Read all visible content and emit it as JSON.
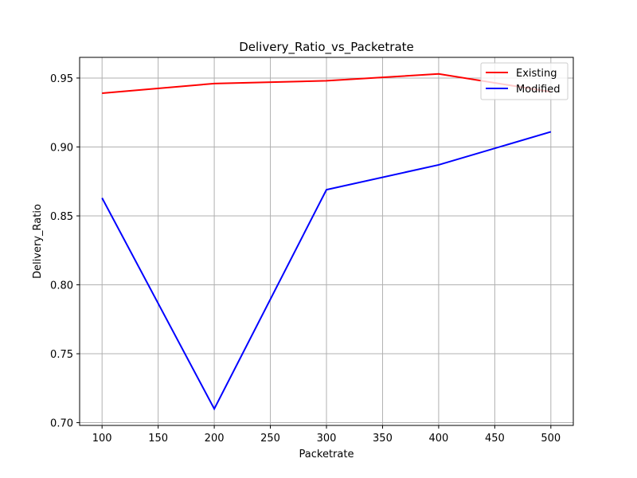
{
  "chart_data": {
    "type": "line",
    "title": "Delivery_Ratio_vs_Packetrate",
    "xlabel": "Packetrate",
    "ylabel": "Delivery_Ratio",
    "x": [
      100,
      200,
      300,
      400,
      500
    ],
    "xlim": [
      80,
      520
    ],
    "ylim": [
      0.698,
      0.965
    ],
    "xticks": [
      100,
      150,
      200,
      250,
      300,
      350,
      400,
      450,
      500
    ],
    "yticks": [
      0.7,
      0.75,
      0.8,
      0.85,
      0.9,
      0.95
    ],
    "xtick_labels": [
      "100",
      "150",
      "200",
      "250",
      "300",
      "350",
      "400",
      "450",
      "500"
    ],
    "ytick_labels": [
      "0.70",
      "0.75",
      "0.80",
      "0.85",
      "0.90",
      "0.95"
    ],
    "grid": true,
    "legend_position": "top-right",
    "series": [
      {
        "name": "Existing",
        "color": "#ff0000",
        "values": [
          0.939,
          0.946,
          0.948,
          0.953,
          0.94
        ]
      },
      {
        "name": "Modified",
        "color": "#0000ff",
        "values": [
          0.863,
          0.71,
          0.869,
          0.887,
          0.911
        ]
      }
    ]
  }
}
